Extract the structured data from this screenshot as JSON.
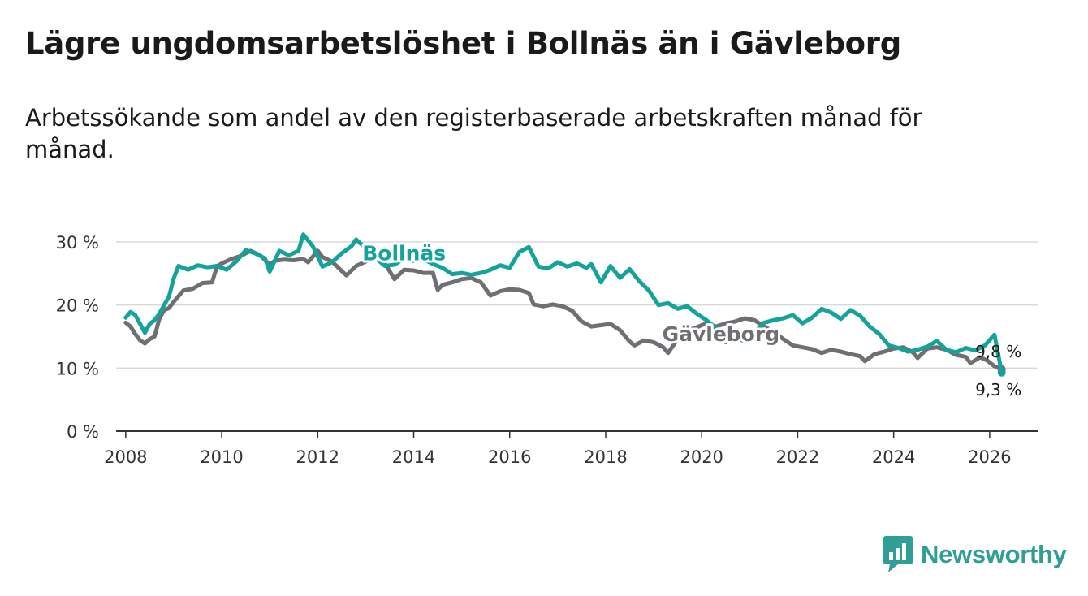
{
  "title": "Lägre ungdomsarbetslöshet i Bollnäs än i Gävleborg",
  "subtitle": "Arbetssökande som andel av den registerbaserade arbetskraften månad för månad.",
  "brand": {
    "name": "Newsworthy",
    "icon": "newsworthy-logo-icon",
    "color": "#2f9e95"
  },
  "chart_data": {
    "type": "line",
    "title": "Lägre ungdomsarbetslöshet i Bollnäs än i Gävleborg",
    "xlabel": "",
    "ylabel": "",
    "xlim": [
      2007.8,
      2027.0
    ],
    "ylim": [
      0,
      30
    ],
    "grid": true,
    "x_ticks": [
      2008,
      2010,
      2012,
      2014,
      2016,
      2018,
      2020,
      2022,
      2024,
      2026
    ],
    "x_tick_labels": [
      "2008",
      "2010",
      "2012",
      "2014",
      "2016",
      "2018",
      "2020",
      "2022",
      "2024",
      "2026"
    ],
    "y_ticks": [
      0,
      10,
      20,
      30
    ],
    "y_tick_labels": [
      "0 %",
      "10 %",
      "20 %",
      "30 %"
    ],
    "series": [
      {
        "name": "Gävleborg",
        "color": "#6e6e73",
        "end_label": "9,8 %",
        "points": [
          [
            2008.0,
            17.2
          ],
          [
            2008.1,
            16.6
          ],
          [
            2008.2,
            15.4
          ],
          [
            2008.3,
            14.4
          ],
          [
            2008.4,
            13.9
          ],
          [
            2008.5,
            14.6
          ],
          [
            2008.6,
            15.0
          ],
          [
            2008.7,
            17.8
          ],
          [
            2008.8,
            19.2
          ],
          [
            2008.9,
            19.5
          ],
          [
            2009.0,
            20.5
          ],
          [
            2009.2,
            22.3
          ],
          [
            2009.4,
            22.6
          ],
          [
            2009.6,
            23.5
          ],
          [
            2009.8,
            23.6
          ],
          [
            2009.9,
            26.1
          ],
          [
            2010.0,
            26.6
          ],
          [
            2010.2,
            27.3
          ],
          [
            2010.4,
            27.8
          ],
          [
            2010.6,
            28.6
          ],
          [
            2010.8,
            27.9
          ],
          [
            2011.0,
            26.4
          ],
          [
            2011.1,
            27.0
          ],
          [
            2011.3,
            27.2
          ],
          [
            2011.5,
            27.1
          ],
          [
            2011.7,
            27.3
          ],
          [
            2011.8,
            26.8
          ],
          [
            2012.0,
            28.6
          ],
          [
            2012.1,
            27.6
          ],
          [
            2012.3,
            26.9
          ],
          [
            2012.5,
            25.4
          ],
          [
            2012.6,
            24.7
          ],
          [
            2012.8,
            26.2
          ],
          [
            2013.0,
            26.9
          ],
          [
            2013.2,
            27.6
          ],
          [
            2013.4,
            26.6
          ],
          [
            2013.6,
            24.1
          ],
          [
            2013.8,
            25.6
          ],
          [
            2014.0,
            25.5
          ],
          [
            2014.2,
            25.1
          ],
          [
            2014.4,
            25.1
          ],
          [
            2014.5,
            22.4
          ],
          [
            2014.6,
            23.2
          ],
          [
            2014.8,
            23.6
          ],
          [
            2015.0,
            24.1
          ],
          [
            2015.2,
            24.3
          ],
          [
            2015.4,
            23.6
          ],
          [
            2015.6,
            21.5
          ],
          [
            2015.8,
            22.2
          ],
          [
            2016.0,
            22.5
          ],
          [
            2016.2,
            22.4
          ],
          [
            2016.4,
            21.9
          ],
          [
            2016.5,
            20.1
          ],
          [
            2016.7,
            19.8
          ],
          [
            2016.9,
            20.1
          ],
          [
            2017.1,
            19.8
          ],
          [
            2017.3,
            19.1
          ],
          [
            2017.5,
            17.4
          ],
          [
            2017.7,
            16.6
          ],
          [
            2017.9,
            16.8
          ],
          [
            2018.1,
            17.0
          ],
          [
            2018.3,
            16.0
          ],
          [
            2018.5,
            14.2
          ],
          [
            2018.6,
            13.6
          ],
          [
            2018.8,
            14.4
          ],
          [
            2019.0,
            14.1
          ],
          [
            2019.2,
            13.3
          ],
          [
            2019.3,
            12.4
          ],
          [
            2019.5,
            14.6
          ],
          [
            2019.7,
            15.9
          ],
          [
            2019.9,
            16.5
          ],
          [
            2020.1,
            17.1
          ],
          [
            2020.3,
            16.6
          ],
          [
            2020.5,
            17.1
          ],
          [
            2020.7,
            17.4
          ],
          [
            2020.9,
            17.9
          ],
          [
            2021.1,
            17.6
          ],
          [
            2021.3,
            16.6
          ],
          [
            2021.5,
            15.8
          ],
          [
            2021.7,
            14.6
          ],
          [
            2021.9,
            13.6
          ],
          [
            2022.1,
            13.3
          ],
          [
            2022.3,
            13.0
          ],
          [
            2022.5,
            12.4
          ],
          [
            2022.7,
            12.9
          ],
          [
            2022.9,
            12.6
          ],
          [
            2023.1,
            12.2
          ],
          [
            2023.3,
            11.9
          ],
          [
            2023.4,
            11.1
          ],
          [
            2023.6,
            12.2
          ],
          [
            2023.8,
            12.6
          ],
          [
            2024.0,
            13.1
          ],
          [
            2024.2,
            13.3
          ],
          [
            2024.4,
            12.5
          ],
          [
            2024.5,
            11.6
          ],
          [
            2024.7,
            13.1
          ],
          [
            2024.9,
            13.3
          ],
          [
            2025.1,
            12.9
          ],
          [
            2025.3,
            12.1
          ],
          [
            2025.5,
            11.8
          ],
          [
            2025.6,
            10.8
          ],
          [
            2025.8,
            11.7
          ],
          [
            2025.95,
            11.2
          ],
          [
            2026.1,
            10.3
          ],
          [
            2026.25,
            9.8
          ]
        ]
      },
      {
        "name": "Bollnäs",
        "color": "#14a39a",
        "end_label": "9,3 %",
        "points": [
          [
            2008.0,
            18.0
          ],
          [
            2008.1,
            18.9
          ],
          [
            2008.2,
            18.4
          ],
          [
            2008.3,
            17.0
          ],
          [
            2008.4,
            15.6
          ],
          [
            2008.5,
            17.0
          ],
          [
            2008.6,
            17.6
          ],
          [
            2008.7,
            18.6
          ],
          [
            2008.8,
            20.0
          ],
          [
            2008.9,
            21.3
          ],
          [
            2009.0,
            24.2
          ],
          [
            2009.1,
            26.2
          ],
          [
            2009.3,
            25.6
          ],
          [
            2009.5,
            26.3
          ],
          [
            2009.7,
            26.0
          ],
          [
            2009.9,
            26.2
          ],
          [
            2010.1,
            25.6
          ],
          [
            2010.3,
            26.9
          ],
          [
            2010.5,
            28.7
          ],
          [
            2010.7,
            28.2
          ],
          [
            2010.9,
            27.4
          ],
          [
            2011.0,
            25.3
          ],
          [
            2011.2,
            28.6
          ],
          [
            2011.4,
            27.9
          ],
          [
            2011.6,
            28.6
          ],
          [
            2011.7,
            31.2
          ],
          [
            2011.9,
            29.3
          ],
          [
            2012.1,
            26.1
          ],
          [
            2012.3,
            26.8
          ],
          [
            2012.5,
            28.2
          ],
          [
            2012.7,
            29.3
          ],
          [
            2012.8,
            30.4
          ],
          [
            2013.0,
            29.0
          ],
          [
            2013.2,
            27.5
          ],
          [
            2013.4,
            26.2
          ],
          [
            2013.6,
            26.4
          ],
          [
            2013.8,
            27.4
          ],
          [
            2014.0,
            27.0
          ],
          [
            2014.2,
            27.3
          ],
          [
            2014.4,
            26.5
          ],
          [
            2014.6,
            25.9
          ],
          [
            2014.8,
            24.9
          ],
          [
            2015.0,
            25.1
          ],
          [
            2015.2,
            24.8
          ],
          [
            2015.4,
            25.1
          ],
          [
            2015.6,
            25.6
          ],
          [
            2015.8,
            26.3
          ],
          [
            2016.0,
            25.9
          ],
          [
            2016.2,
            28.4
          ],
          [
            2016.4,
            29.2
          ],
          [
            2016.6,
            26.1
          ],
          [
            2016.8,
            25.8
          ],
          [
            2017.0,
            26.8
          ],
          [
            2017.2,
            26.1
          ],
          [
            2017.4,
            26.6
          ],
          [
            2017.6,
            25.9
          ],
          [
            2017.7,
            26.5
          ],
          [
            2017.9,
            23.6
          ],
          [
            2018.1,
            26.2
          ],
          [
            2018.3,
            24.3
          ],
          [
            2018.5,
            25.7
          ],
          [
            2018.7,
            23.8
          ],
          [
            2018.9,
            22.3
          ],
          [
            2019.1,
            20.0
          ],
          [
            2019.3,
            20.3
          ],
          [
            2019.5,
            19.4
          ],
          [
            2019.7,
            19.8
          ],
          [
            2019.9,
            18.6
          ],
          [
            2020.1,
            17.6
          ],
          [
            2020.3,
            16.3
          ],
          [
            2020.5,
            14.1
          ],
          [
            2020.7,
            14.9
          ],
          [
            2020.9,
            14.2
          ],
          [
            2021.1,
            15.6
          ],
          [
            2021.3,
            17.2
          ],
          [
            2021.5,
            17.6
          ],
          [
            2021.7,
            17.9
          ],
          [
            2021.9,
            18.4
          ],
          [
            2022.1,
            17.1
          ],
          [
            2022.3,
            18.0
          ],
          [
            2022.5,
            19.4
          ],
          [
            2022.7,
            18.8
          ],
          [
            2022.9,
            17.8
          ],
          [
            2023.1,
            19.2
          ],
          [
            2023.3,
            18.3
          ],
          [
            2023.5,
            16.6
          ],
          [
            2023.7,
            15.4
          ],
          [
            2023.9,
            13.6
          ],
          [
            2024.1,
            13.2
          ],
          [
            2024.3,
            12.6
          ],
          [
            2024.5,
            12.9
          ],
          [
            2024.7,
            13.4
          ],
          [
            2024.9,
            14.3
          ],
          [
            2025.1,
            12.9
          ],
          [
            2025.3,
            12.5
          ],
          [
            2025.5,
            13.2
          ],
          [
            2025.7,
            12.8
          ],
          [
            2025.9,
            13.6
          ],
          [
            2026.1,
            15.3
          ],
          [
            2026.25,
            9.3
          ]
        ]
      }
    ],
    "labels": [
      {
        "series": "Bollnäs",
        "text": "Bollnäs",
        "at": [
          2013.8,
          27.1
        ]
      },
      {
        "series": "Gävleborg",
        "text": "Gävleborg",
        "at": [
          2020.4,
          14.3
        ]
      }
    ]
  }
}
